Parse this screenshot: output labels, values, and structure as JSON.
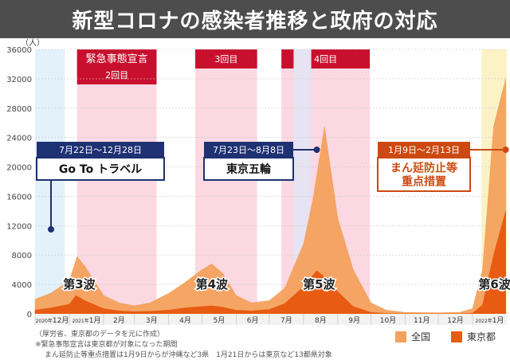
{
  "title": "新型コロナの感染者推移と政府の対応",
  "footer": {
    "source": "（厚労省、東京都のデータを元に作成）",
    "note1": "※緊急事態宣言は東京都が対象になった期間",
    "note2": "まん延防止等重点措置は1月9日からが沖縄など3県　1月21日からは東京など13都県対象"
  },
  "chart_data": {
    "type": "area",
    "y_unit": "（人）",
    "ylim": [
      0,
      36000
    ],
    "yticks": [
      "0",
      "4000",
      "8000",
      "12000",
      "16000",
      "20000",
      "24000",
      "28000",
      "32000",
      "36000"
    ],
    "x_tick_labels": [
      "2020年12月",
      "2021年1月",
      "2月",
      "3月",
      "4月",
      "5月",
      "6月",
      "7月",
      "8月",
      "9月",
      "10月",
      "11月",
      "12月",
      "2022年1月"
    ],
    "months": [
      {
        "small": "2020年",
        "big": "12月"
      },
      {
        "small": "2021年",
        "big": "1月"
      },
      {
        "small": "",
        "big": "2月"
      },
      {
        "small": "",
        "big": "3月"
      },
      {
        "small": "",
        "big": "4月"
      },
      {
        "small": "",
        "big": "5月"
      },
      {
        "small": "",
        "big": "6月"
      },
      {
        "small": "",
        "big": "7月"
      },
      {
        "small": "",
        "big": "8月"
      },
      {
        "small": "",
        "big": "9月"
      },
      {
        "small": "",
        "big": "10月"
      },
      {
        "small": "",
        "big": "11月"
      },
      {
        "small": "",
        "big": "12月"
      },
      {
        "small": "2022年",
        "big": "1月"
      }
    ],
    "series": [
      {
        "name": "全国",
        "color": "#f4a15d",
        "x": [
          "2020-12-01",
          "2020-12-15",
          "2021-01-01",
          "2021-01-08",
          "2021-01-15",
          "2021-02-01",
          "2021-02-15",
          "2021-03-01",
          "2021-03-15",
          "2021-04-01",
          "2021-04-15",
          "2021-05-01",
          "2021-05-10",
          "2021-05-20",
          "2021-06-01",
          "2021-06-15",
          "2021-07-01",
          "2021-07-15",
          "2021-08-01",
          "2021-08-10",
          "2021-08-20",
          "2021-09-01",
          "2021-09-15",
          "2021-10-01",
          "2021-10-15",
          "2021-11-01",
          "2021-12-01",
          "2021-12-20",
          "2022-01-01",
          "2022-01-10",
          "2022-01-20",
          "2022-01-31"
        ],
        "values": [
          2000,
          2800,
          4500,
          7800,
          6500,
          2500,
          1500,
          1100,
          1500,
          2800,
          4200,
          6000,
          6800,
          5500,
          2500,
          1500,
          1800,
          3500,
          9500,
          16000,
          25500,
          13000,
          6000,
          1500,
          500,
          200,
          150,
          200,
          700,
          6000,
          25500,
          32000
        ]
      },
      {
        "name": "東京都",
        "color": "#e85b12",
        "x": [
          "2020-12-01",
          "2020-12-15",
          "2021-01-01",
          "2021-01-07",
          "2021-01-15",
          "2021-02-01",
          "2021-02-15",
          "2021-03-01",
          "2021-03-15",
          "2021-04-01",
          "2021-04-15",
          "2021-05-01",
          "2021-05-10",
          "2021-05-20",
          "2021-06-01",
          "2021-06-15",
          "2021-07-01",
          "2021-07-15",
          "2021-08-01",
          "2021-08-13",
          "2021-08-20",
          "2021-09-01",
          "2021-09-15",
          "2021-10-01",
          "2021-10-15",
          "2021-11-01",
          "2021-12-01",
          "2021-12-20",
          "2022-01-01",
          "2022-01-10",
          "2022-01-20",
          "2022-01-31"
        ],
        "values": [
          500,
          800,
          1300,
          2500,
          1800,
          700,
          400,
          300,
          350,
          500,
          800,
          1000,
          1100,
          900,
          500,
          400,
          600,
          1400,
          3700,
          5900,
          5000,
          3000,
          1000,
          200,
          50,
          30,
          20,
          30,
          100,
          1200,
          8000,
          14000
        ]
      }
    ],
    "bands": [
      {
        "label": "",
        "from": "2020-12-01",
        "to": "2020-12-28",
        "fill": "#e3f1fa"
      },
      {
        "label": "緊急事態宣言",
        "sublabel": "2回目",
        "from": "2021-01-08",
        "to": "2021-03-21",
        "fill": "#fbd8e2"
      },
      {
        "label": "3回目",
        "from": "2021-04-25",
        "to": "2021-06-20",
        "fill": "#fbd8e2"
      },
      {
        "label": "4回目",
        "from": "2021-07-12",
        "to": "2021-09-30",
        "fill": "#fbd8e2"
      },
      {
        "label": "",
        "from": "2021-07-23",
        "to": "2021-08-08",
        "fill": "#e6e3f2"
      },
      {
        "label": "",
        "from": "2022-01-09",
        "to": "2022-02-13",
        "fill": "#fbf3c5"
      }
    ],
    "callouts": [
      {
        "date_label": "7月22日〜12月28日",
        "event": "Go To トラベル",
        "color": "#1e3173",
        "dot_date": "2020-12-01",
        "dot_value": 11500
      },
      {
        "date_label": "7月23日〜8月8日",
        "event": "東京五輪",
        "color": "#1e3173",
        "dot_date": "2021-08-13",
        "dot_value": 23500
      },
      {
        "date_label": "1月9日〜2月13日",
        "event": "まん延防止等\n重点措置",
        "color": "#cc4a12",
        "dot_date": "2022-01-31",
        "dot_value": 23500
      }
    ],
    "wave_labels": [
      {
        "text": "第3波",
        "date": "2021-01-10"
      },
      {
        "text": "第4波",
        "date": "2021-05-10"
      },
      {
        "text": "第5波",
        "date": "2021-08-15"
      },
      {
        "text": "第6波?",
        "date": "2022-01-24"
      }
    ],
    "legend": {
      "items": [
        "全国",
        "東京都"
      ],
      "position": "bottom-right"
    },
    "grid": true
  }
}
